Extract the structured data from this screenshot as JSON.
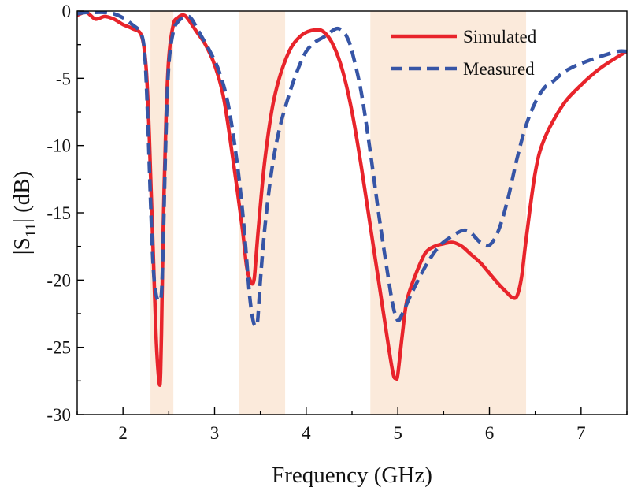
{
  "chart_data": {
    "type": "line",
    "title": "",
    "xlabel": "Frequency (GHz)",
    "ylabel": {
      "pre": "|S",
      "sub": "11",
      "post": "| (dB)"
    },
    "xlim": [
      1.5,
      7.5
    ],
    "ylim": [
      -30,
      0
    ],
    "xticks": [
      2,
      3,
      4,
      5,
      6,
      7
    ],
    "yticks": [
      0,
      -5,
      -10,
      -15,
      -20,
      -25,
      -30
    ],
    "grid": false,
    "legend_position": "top-right",
    "highlight_bands": [
      {
        "from": 2.3,
        "to": 2.55
      },
      {
        "from": 3.27,
        "to": 3.77
      },
      {
        "from": 4.7,
        "to": 6.4
      }
    ],
    "band_color": "#fbeadb",
    "series": [
      {
        "name": "Simulated",
        "color": "#e8242b",
        "dash": "solid",
        "x": [
          1.5,
          1.6,
          1.7,
          1.8,
          1.9,
          2.0,
          2.1,
          2.2,
          2.25,
          2.28,
          2.3,
          2.33,
          2.36,
          2.38,
          2.4,
          2.41,
          2.42,
          2.44,
          2.47,
          2.5,
          2.55,
          2.6,
          2.65,
          2.7,
          2.8,
          2.9,
          3.0,
          3.1,
          3.2,
          3.3,
          3.35,
          3.4,
          3.43,
          3.45,
          3.48,
          3.55,
          3.65,
          3.8,
          3.95,
          4.1,
          4.2,
          4.3,
          4.4,
          4.5,
          4.6,
          4.7,
          4.8,
          4.9,
          4.95,
          4.98,
          5.0,
          5.05,
          5.1,
          5.2,
          5.3,
          5.4,
          5.5,
          5.6,
          5.7,
          5.8,
          5.9,
          6.0,
          6.1,
          6.2,
          6.25,
          6.3,
          6.35,
          6.4,
          6.5,
          6.6,
          6.8,
          7.0,
          7.2,
          7.4,
          7.5
        ],
        "values": [
          -0.3,
          -0.1,
          -0.6,
          -0.4,
          -0.6,
          -1.0,
          -1.3,
          -1.8,
          -4.0,
          -8.0,
          -12.0,
          -18.0,
          -24.0,
          -26.5,
          -27.8,
          -27.0,
          -24.0,
          -16.0,
          -8.0,
          -3.5,
          -1.0,
          -0.5,
          -0.3,
          -0.5,
          -1.5,
          -2.5,
          -4.0,
          -6.5,
          -11.0,
          -16.0,
          -19.0,
          -20.2,
          -20.0,
          -18.5,
          -16.0,
          -11.0,
          -6.5,
          -3.2,
          -1.8,
          -1.4,
          -1.6,
          -2.6,
          -4.5,
          -7.5,
          -11.5,
          -16.0,
          -20.5,
          -25.0,
          -27.0,
          -27.3,
          -27.0,
          -24.0,
          -21.5,
          -19.5,
          -18.0,
          -17.5,
          -17.3,
          -17.2,
          -17.5,
          -18.1,
          -18.7,
          -19.5,
          -20.3,
          -21.0,
          -21.3,
          -21.2,
          -19.8,
          -17.0,
          -12.0,
          -9.5,
          -7.0,
          -5.5,
          -4.3,
          -3.4,
          -3.0
        ]
      },
      {
        "name": "Measured",
        "color": "#3655a6",
        "dash": "dashed",
        "x": [
          1.5,
          1.6,
          1.7,
          1.8,
          1.9,
          2.0,
          2.1,
          2.2,
          2.24,
          2.27,
          2.3,
          2.33,
          2.36,
          2.39,
          2.42,
          2.44,
          2.47,
          2.5,
          2.55,
          2.6,
          2.65,
          2.7,
          2.75,
          2.85,
          2.95,
          3.05,
          3.15,
          3.25,
          3.32,
          3.38,
          3.42,
          3.45,
          3.47,
          3.5,
          3.55,
          3.62,
          3.7,
          3.8,
          3.9,
          4.0,
          4.1,
          4.2,
          4.3,
          4.35,
          4.4,
          4.45,
          4.5,
          4.6,
          4.7,
          4.8,
          4.9,
          4.95,
          5.0,
          5.05,
          5.15,
          5.3,
          5.45,
          5.6,
          5.72,
          5.8,
          5.9,
          6.0,
          6.1,
          6.2,
          6.3,
          6.4,
          6.5,
          6.6,
          6.7,
          6.8,
          6.9,
          7.0,
          7.2,
          7.4,
          7.5
        ],
        "values": [
          -0.2,
          -0.1,
          -0.1,
          -0.1,
          -0.2,
          -0.5,
          -1.0,
          -1.7,
          -3.5,
          -8.0,
          -14.0,
          -19.0,
          -21.0,
          -21.5,
          -21.0,
          -17.0,
          -9.0,
          -4.0,
          -1.5,
          -0.8,
          -0.5,
          -0.4,
          -0.6,
          -1.8,
          -3.0,
          -4.5,
          -7.0,
          -11.5,
          -16.0,
          -21.0,
          -23.0,
          -23.4,
          -23.0,
          -20.0,
          -16.0,
          -12.0,
          -9.0,
          -6.5,
          -4.5,
          -3.0,
          -2.3,
          -1.9,
          -1.4,
          -1.3,
          -1.5,
          -2.0,
          -3.0,
          -6.0,
          -10.5,
          -15.5,
          -20.0,
          -22.0,
          -23.0,
          -22.5,
          -21.0,
          -19.0,
          -17.5,
          -16.7,
          -16.3,
          -16.5,
          -17.2,
          -17.4,
          -16.3,
          -14.0,
          -11.0,
          -8.5,
          -6.8,
          -5.7,
          -5.2,
          -4.6,
          -4.2,
          -3.9,
          -3.4,
          -3.0,
          -3.0
        ]
      }
    ]
  }
}
